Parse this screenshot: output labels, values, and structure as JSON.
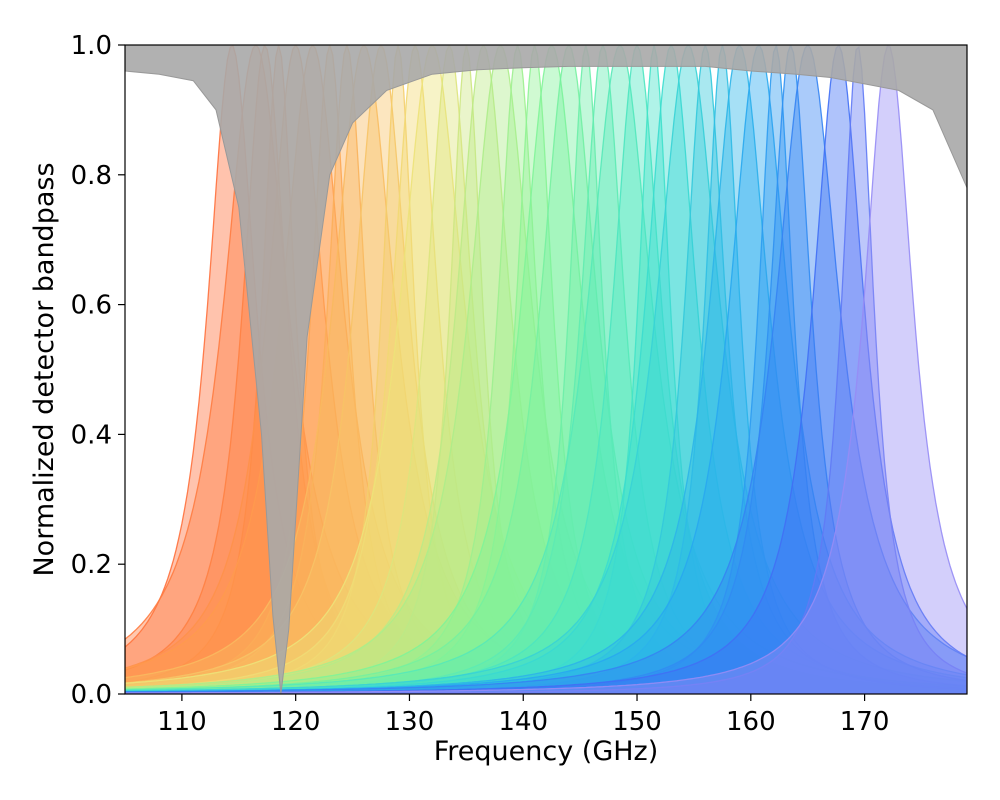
{
  "chart_data": {
    "type": "area",
    "title": "",
    "xlabel": "Frequency (GHz)",
    "ylabel": "Normalized detector bandpass",
    "xlim": [
      105,
      179
    ],
    "ylim": [
      0.0,
      1.0
    ],
    "xticks": [
      110,
      120,
      130,
      140,
      150,
      160,
      170
    ],
    "xtick_labels": [
      "110",
      "120",
      "130",
      "140",
      "150",
      "160",
      "170"
    ],
    "yticks": [
      0.0,
      0.2,
      0.4,
      0.6,
      0.8,
      1.0
    ],
    "ytick_labels": [
      "0.0",
      "0.2",
      "0.4",
      "0.6",
      "0.8",
      "1.0"
    ],
    "grid": false,
    "legend": null,
    "series": [
      {
        "name": "detector channels (Lorentzian-like bandpasses, peak normalized to 1.0)",
        "peak_value": 1.0,
        "centers_ghz_sampled": [
          114.4,
          116.5,
          117.3,
          118.5,
          120.0,
          121.5,
          123.0,
          124.5,
          126.0,
          127.5,
          129.0,
          130.5,
          132.0,
          133.5,
          135.0,
          136.5,
          138.0,
          139.5,
          141.0,
          142.5,
          144.0,
          145.5,
          147.0,
          148.5,
          150.0,
          151.5,
          153.0,
          154.5,
          156.0,
          157.5,
          159.0,
          160.7,
          162.2,
          163.5,
          165.0,
          167.7,
          169.4,
          172.1
        ],
        "fwhm_ghz_range": [
          3.5,
          7.0
        ],
        "color_scale": "orange (low frequency) → yellow → green → cyan → blue → violet (high frequency)"
      },
      {
        "name": "atmospheric transmission / filter envelope (gray, shaded to 1.0)",
        "color": "#a9a9a9",
        "x": [
          105,
          108,
          111,
          113,
          115,
          117,
          118,
          118.7,
          119.4,
          121,
          123,
          125,
          128,
          132,
          136,
          140,
          144,
          150,
          156,
          160,
          164,
          167,
          170,
          173,
          176,
          179
        ],
        "y": [
          0.96,
          0.955,
          0.945,
          0.9,
          0.75,
          0.4,
          0.12,
          0.0,
          0.1,
          0.55,
          0.8,
          0.88,
          0.93,
          0.955,
          0.962,
          0.965,
          0.967,
          0.967,
          0.967,
          0.96,
          0.955,
          0.95,
          0.94,
          0.93,
          0.9,
          0.78
        ]
      }
    ]
  }
}
